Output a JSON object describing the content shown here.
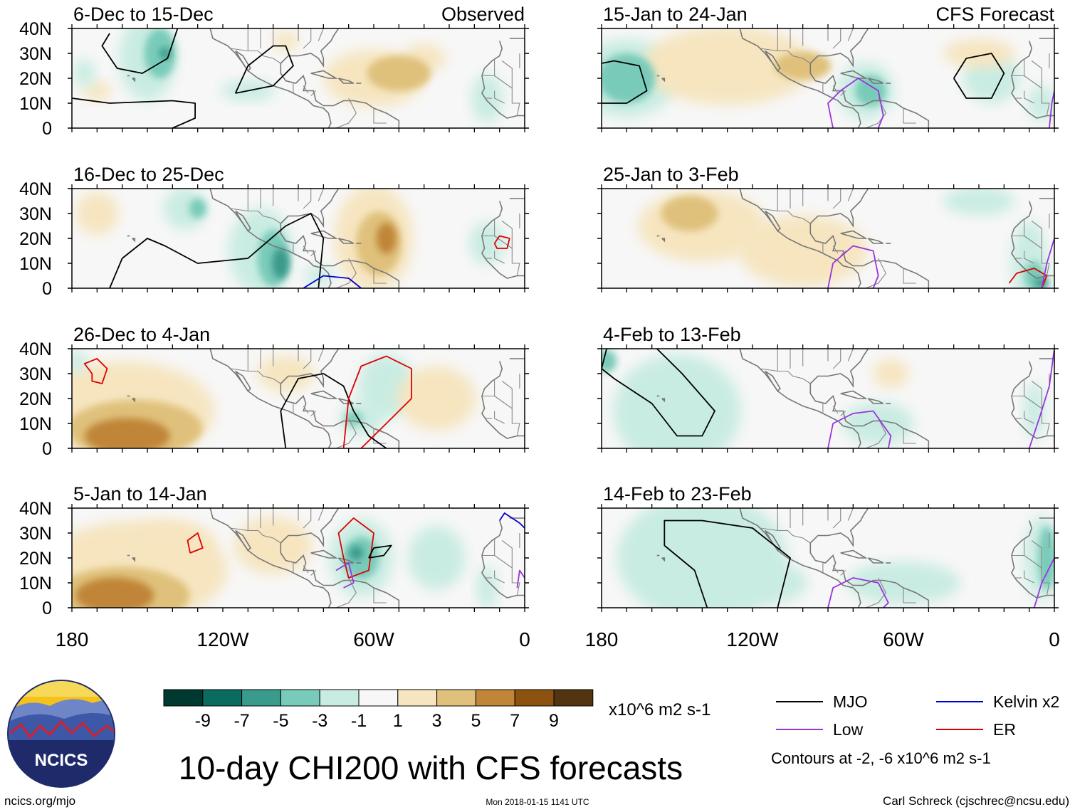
{
  "figure": {
    "title": "10-day CHI200 with CFS forecasts",
    "observed_label": "Observed",
    "forecast_label": "CFS Forecast",
    "website": "ncics.org/mjo",
    "timestamp": "Mon 2018-01-15 1141 UTC",
    "author": "Carl Schreck (cjschrec@ncsu.edu)",
    "logo_text": "NCICS",
    "units": "x10^6 m2 s-1",
    "contour_note": "Contours at -2, -6 x10^6 m2 s-1"
  },
  "chart_data": {
    "type": "heatmap",
    "variable": "CHI200 anomaly (10-day mean)",
    "x_ticks": [
      "180",
      "120W",
      "60W",
      "0"
    ],
    "x_range": [
      -180,
      0
    ],
    "y_ticks": [
      "0",
      "10N",
      "20N",
      "30N",
      "40N"
    ],
    "y_range": [
      0,
      40
    ],
    "colorbar": {
      "labels": [
        "-9",
        "-7",
        "-5",
        "-3",
        "-1",
        "1",
        "3",
        "5",
        "7",
        "9"
      ],
      "colors": [
        "#00392f",
        "#0a6b5e",
        "#3a9a8b",
        "#79cbb9",
        "#c9ece2",
        "#f7f7f7",
        "#f6e5bf",
        "#dfc17c",
        "#c08538",
        "#8c5210",
        "#523410"
      ]
    },
    "legend": [
      {
        "name": "MJO",
        "color": "#000000"
      },
      {
        "name": "Kelvin x2",
        "color": "#0000cc"
      },
      {
        "name": "Low",
        "color": "#9933dd"
      },
      {
        "name": "ER",
        "color": "#dd0000"
      }
    ],
    "panels": [
      {
        "label": "6-Dec to 15-Dec",
        "type": "Observed"
      },
      {
        "label": "16-Dec to 25-Dec",
        "type": "Observed"
      },
      {
        "label": "26-Dec to 4-Jan",
        "type": "Observed"
      },
      {
        "label": "5-Jan to 14-Jan",
        "type": "Observed"
      },
      {
        "label": "15-Jan to 24-Jan",
        "type": "CFS Forecast"
      },
      {
        "label": "25-Jan to 3-Feb",
        "type": "CFS Forecast"
      },
      {
        "label": "4-Feb to 13-Feb",
        "type": "CFS Forecast"
      },
      {
        "label": "14-Feb to 23-Feb",
        "type": "CFS Forecast"
      }
    ]
  }
}
